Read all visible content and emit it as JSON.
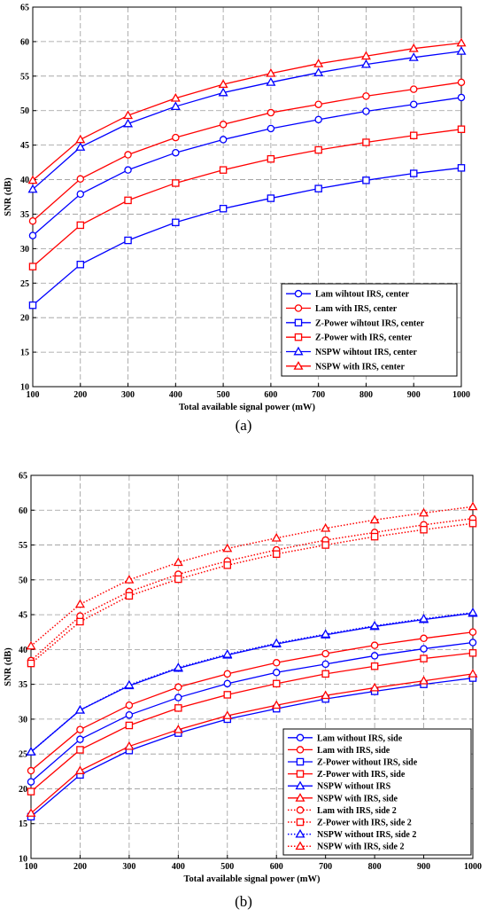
{
  "colors": {
    "blue": "#0000ff",
    "red": "#ff0000",
    "grid": "#9a9a9a"
  },
  "chart_data": [
    {
      "type": "line",
      "panel_label": "(a)",
      "xlabel": "Total available signal power (mW)",
      "ylabel": "SNR (dB)",
      "xlim": [
        100,
        1000
      ],
      "ylim": [
        10,
        65
      ],
      "xticks": [
        100,
        200,
        300,
        400,
        500,
        600,
        700,
        800,
        900,
        1000
      ],
      "yticks": [
        10,
        15,
        20,
        25,
        30,
        35,
        40,
        45,
        50,
        55,
        60,
        65
      ],
      "grid": true,
      "legend_position": "bottom-right",
      "x": [
        100,
        200,
        300,
        400,
        500,
        600,
        700,
        800,
        900,
        1000
      ],
      "series": [
        {
          "name": "Lam wihtout IRS, center",
          "color": "blue",
          "marker": "circle",
          "style": "solid",
          "values": [
            31.9,
            37.9,
            41.4,
            43.9,
            45.8,
            47.4,
            48.7,
            49.9,
            50.9,
            51.9
          ]
        },
        {
          "name": "Lam with IRS, center",
          "color": "red",
          "marker": "circle",
          "style": "solid",
          "values": [
            34.0,
            40.1,
            43.6,
            46.1,
            48.0,
            49.7,
            50.9,
            52.1,
            53.1,
            54.1
          ]
        },
        {
          "name": "Z-Power wihtout IRS, center",
          "color": "blue",
          "marker": "square",
          "style": "solid",
          "values": [
            21.8,
            27.7,
            31.2,
            33.8,
            35.8,
            37.3,
            38.7,
            39.9,
            40.9,
            41.7
          ]
        },
        {
          "name": "Z-Power with IRS, center",
          "color": "red",
          "marker": "square",
          "style": "solid",
          "values": [
            27.4,
            33.4,
            37.0,
            39.5,
            41.4,
            43.0,
            44.3,
            45.4,
            46.4,
            47.3
          ]
        },
        {
          "name": "NSPW wihtout IRS, center",
          "color": "blue",
          "marker": "triangle",
          "style": "solid",
          "values": [
            38.6,
            44.7,
            48.1,
            50.6,
            52.6,
            54.1,
            55.5,
            56.7,
            57.7,
            58.6
          ]
        },
        {
          "name": "NSPW with IRS, center",
          "color": "red",
          "marker": "triangle",
          "style": "solid",
          "values": [
            39.9,
            45.8,
            49.3,
            51.8,
            53.8,
            55.4,
            56.8,
            57.9,
            59.0,
            59.8
          ]
        }
      ]
    },
    {
      "type": "line",
      "panel_label": "(b)",
      "xlabel": "Total available signal power (mW)",
      "ylabel": "SNR (dB)",
      "xlim": [
        100,
        1000
      ],
      "ylim": [
        10,
        65
      ],
      "xticks": [
        100,
        200,
        300,
        400,
        500,
        600,
        700,
        800,
        900,
        1000
      ],
      "yticks": [
        10,
        15,
        20,
        25,
        30,
        35,
        40,
        45,
        50,
        55,
        60,
        65
      ],
      "grid": true,
      "legend_position": "bottom-right",
      "x": [
        100,
        200,
        300,
        400,
        500,
        600,
        700,
        800,
        900,
        1000
      ],
      "series": [
        {
          "name": "Lam without IRS,  side",
          "color": "blue",
          "marker": "circle",
          "style": "solid",
          "values": [
            21.0,
            27.1,
            30.6,
            33.1,
            35.1,
            36.7,
            37.9,
            39.1,
            40.1,
            41.0
          ]
        },
        {
          "name": "Lam with IRS, side",
          "color": "red",
          "marker": "circle",
          "style": "solid",
          "values": [
            22.6,
            28.5,
            32.0,
            34.6,
            36.5,
            38.1,
            39.4,
            40.6,
            41.6,
            42.5
          ]
        },
        {
          "name": "Z-Power without IRS,  side",
          "color": "blue",
          "marker": "square",
          "style": "solid",
          "values": [
            16.0,
            22.0,
            25.5,
            28.0,
            30.0,
            31.5,
            32.9,
            34.0,
            35.0,
            35.9
          ]
        },
        {
          "name": "Z-Power with  IRS, side",
          "color": "red",
          "marker": "square",
          "style": "solid",
          "values": [
            19.6,
            25.6,
            29.1,
            31.6,
            33.5,
            35.1,
            36.5,
            37.6,
            38.7,
            39.5
          ]
        },
        {
          "name": "NSPW without IRS",
          "color": "blue",
          "marker": "triangle",
          "style": "solid",
          "values": [
            25.3,
            31.3,
            34.8,
            37.3,
            39.2,
            40.8,
            42.1,
            43.3,
            44.3,
            45.2
          ]
        },
        {
          "name": "NSPW with  IRS, side",
          "color": "red",
          "marker": "triangle",
          "style": "solid",
          "values": [
            16.5,
            22.6,
            26.1,
            28.5,
            30.5,
            32.0,
            33.4,
            34.5,
            35.5,
            36.5
          ]
        },
        {
          "name": "Lam with IRS, side 2",
          "color": "red",
          "marker": "circle",
          "style": "dotted",
          "values": [
            38.4,
            44.8,
            48.3,
            50.8,
            52.7,
            54.3,
            55.7,
            56.8,
            57.9,
            58.8
          ]
        },
        {
          "name": "Z-Power with  IRS, side 2",
          "color": "red",
          "marker": "square",
          "style": "dotted",
          "values": [
            38.0,
            44.0,
            47.7,
            50.1,
            52.1,
            53.7,
            55.0,
            56.2,
            57.2,
            58.1
          ]
        },
        {
          "name": "NSPW without IRS,  side 2",
          "color": "blue",
          "marker": "triangle",
          "style": "dotted",
          "values": [
            25.3,
            31.3,
            34.9,
            37.4,
            39.3,
            40.9,
            42.2,
            43.4,
            44.4,
            45.3
          ]
        },
        {
          "name": "NSPW with  IRS, side 2",
          "color": "red",
          "marker": "triangle",
          "style": "dotted",
          "values": [
            40.5,
            46.5,
            50.0,
            52.5,
            54.5,
            56.0,
            57.4,
            58.6,
            59.6,
            60.5
          ]
        }
      ]
    }
  ]
}
